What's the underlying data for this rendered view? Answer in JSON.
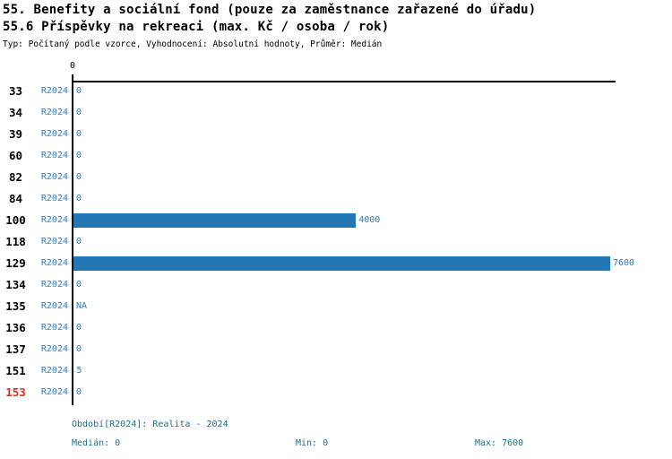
{
  "title": {
    "line1": "55. Benefity a sociální fond (pouze za zaměstnance zařazené do úřadu)",
    "line2": "55.6 Příspěvky na rekreaci (max. Kč / osoba / rok)",
    "meta": "Typ: Počítaný podle vzorce, Vyhodnocení: Absolutní hodnoty, Průměr: Medián"
  },
  "chart_data": {
    "type": "bar",
    "orientation": "horizontal",
    "title": "55.6 Příspěvky na rekreaci (max. Kč / osoba / rok)",
    "series_label": "R2024",
    "categories": [
      "33",
      "34",
      "39",
      "60",
      "82",
      "84",
      "100",
      "118",
      "129",
      "134",
      "135",
      "136",
      "137",
      "151",
      "153"
    ],
    "values": [
      0,
      0,
      0,
      0,
      0,
      0,
      4000,
      0,
      7600,
      0,
      null,
      0,
      0,
      5,
      0
    ],
    "value_labels": [
      "0",
      "0",
      "0",
      "0",
      "0",
      "0",
      "4000",
      "0",
      "7600",
      "0",
      "NA",
      "0",
      "0",
      "5",
      "0"
    ],
    "highlighted_category": "153",
    "xlim": [
      0,
      7600
    ],
    "x_tick_labels": [
      "0"
    ],
    "grid": false,
    "legend_position": "none",
    "bar_color": "#2377b4",
    "median": 0,
    "min": 0,
    "max": 7600
  },
  "axis": {
    "zero_tick_label": "0"
  },
  "footer": {
    "period": "Období[R2024]: Realita - 2024",
    "median": "Medián: 0",
    "min": "Min: 0",
    "max": "Max: 7600"
  },
  "colors": {
    "bar": "#2377b4",
    "row_text_blue": "#2b7cbe",
    "footer_teal": "#17728f",
    "highlight_red": "#e12b24",
    "axis_black": "#000000",
    "background": "#ffffff"
  }
}
